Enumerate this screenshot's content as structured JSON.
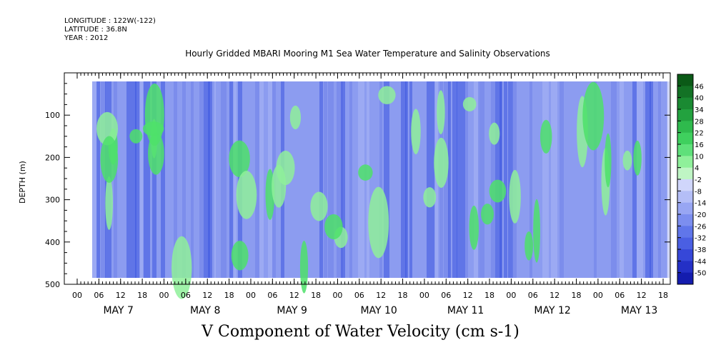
{
  "header": {
    "longitude": "LONGITUDE : 122W(-122)",
    "latitude": "LATITUDE : 36.8N",
    "year": "YEAR : 2012"
  },
  "chart_data": {
    "type": "heatmap",
    "title": "Hourly Gridded MBARI Mooring M1 Sea Water Temperature and Salinity Observations",
    "caption": "V Component of Water Velocity (cm s-1)",
    "ylabel": "DEPTH (m)",
    "xlabel": "",
    "ylim": [
      500,
      0
    ],
    "y_ticks": [
      100,
      200,
      300,
      400,
      500
    ],
    "x_hour_labels": [
      "00",
      "06",
      "12",
      "18",
      "00",
      "06",
      "12",
      "18",
      "00",
      "06",
      "12",
      "18",
      "00",
      "06",
      "12",
      "18",
      "00",
      "06",
      "12",
      "18",
      "00",
      "06",
      "12",
      "18",
      "00",
      "06",
      "12",
      "18"
    ],
    "x_day_labels": [
      "MAY  7",
      "MAY  8",
      "MAY  9",
      "MAY 10",
      "MAY 11",
      "MAY 12",
      "MAY 13"
    ],
    "colorbar": {
      "levels": [
        "46",
        "40",
        "34",
        "28",
        "22",
        "16",
        "10",
        "4",
        "-2",
        "-8",
        "-14",
        "-20",
        "-26",
        "-32",
        "-38",
        "-44",
        "-50"
      ],
      "green_range": [
        4,
        46
      ],
      "blue_range": [
        -50,
        -2
      ]
    },
    "colors": {
      "background_blue": "#8c9cf0",
      "dark_blue": "#3d56e0",
      "light_green": "#8ff09a",
      "green": "#4ee06a"
    }
  }
}
